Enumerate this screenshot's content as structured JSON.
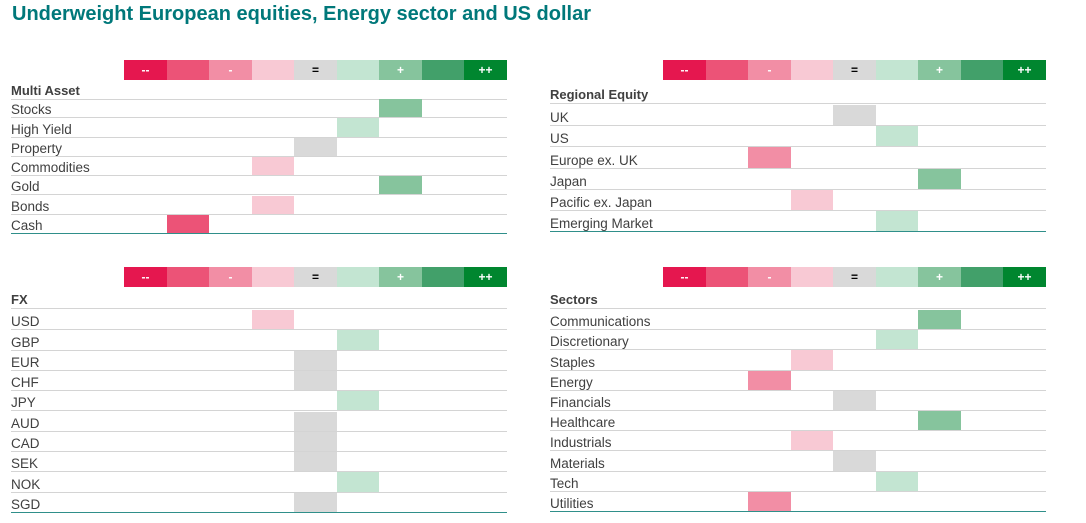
{
  "title": "Underweight European equities, Energy sector and US dollar",
  "colors": {
    "scale": [
      "#e5174f",
      "#ec5377",
      "#f28ea5",
      "#f8c9d4",
      "#d9d9d9",
      "#c3e5d2",
      "#86c49d",
      "#42a06a",
      "#00862f"
    ],
    "scale_text": [
      "#ffffff",
      "#ffffff",
      "#ffffff",
      "#ffffff",
      "#000000",
      "#ffffff",
      "#ffffff",
      "#ffffff",
      "#ffffff"
    ],
    "title": "#00787a",
    "rule": "#2f8f8a"
  },
  "scale_labels": [
    "--",
    "",
    "-",
    "",
    "=",
    "",
    "+",
    "",
    "++"
  ],
  "chart_data": [
    {
      "type": "table",
      "title": "Multi Asset",
      "rows": [
        {
          "label": "Stocks",
          "level": 6
        },
        {
          "label": "High Yield",
          "level": 5
        },
        {
          "label": "Property",
          "level": 4
        },
        {
          "label": "Commodities",
          "level": 3
        },
        {
          "label": "Gold",
          "level": 6
        },
        {
          "label": "Bonds",
          "level": 3
        },
        {
          "label": "Cash",
          "level": 1
        }
      ]
    },
    {
      "type": "table",
      "title": "Regional Equity",
      "rows": [
        {
          "label": "UK",
          "level": 4
        },
        {
          "label": "US",
          "level": 5
        },
        {
          "label": "Europe ex. UK",
          "level": 2
        },
        {
          "label": "Japan",
          "level": 6
        },
        {
          "label": "Pacific ex. Japan",
          "level": 3
        },
        {
          "label": "Emerging Market",
          "level": 5
        }
      ]
    },
    {
      "type": "table",
      "title": "FX",
      "rows": [
        {
          "label": "USD",
          "level": 3
        },
        {
          "label": "GBP",
          "level": 5
        },
        {
          "label": "EUR",
          "level": 4
        },
        {
          "label": "CHF",
          "level": 4
        },
        {
          "label": "JPY",
          "level": 5
        },
        {
          "label": "AUD",
          "level": 4
        },
        {
          "label": "CAD",
          "level": 4
        },
        {
          "label": "SEK",
          "level": 4
        },
        {
          "label": "NOK",
          "level": 5
        },
        {
          "label": "SGD",
          "level": 4
        }
      ]
    },
    {
      "type": "table",
      "title": "Sectors",
      "rows": [
        {
          "label": "Communications",
          "level": 6
        },
        {
          "label": "Discretionary",
          "level": 5
        },
        {
          "label": "Staples",
          "level": 3
        },
        {
          "label": "Energy",
          "level": 2
        },
        {
          "label": "Financials",
          "level": 4
        },
        {
          "label": "Healthcare",
          "level": 6
        },
        {
          "label": "Industrials",
          "level": 3
        },
        {
          "label": "Materials",
          "level": 4
        },
        {
          "label": "Tech",
          "level": 5
        },
        {
          "label": "Utilities",
          "level": 2
        }
      ]
    }
  ]
}
